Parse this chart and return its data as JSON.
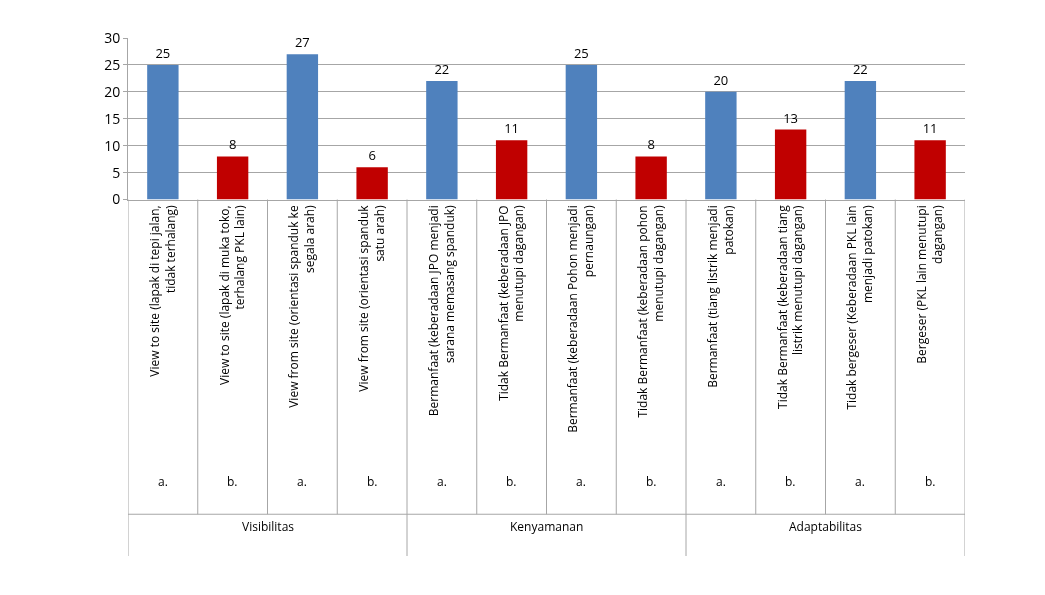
{
  "chart_data": {
    "type": "bar",
    "categories": [
      "View to site (lapak di tepi jalan, tidak terhalang)",
      "View to site (lapak di muka toko, terhalang PKL lain)",
      "View from site (orientasi spanduk ke segala arah)",
      "View from site (orientasi spanduk satu arah)",
      "Bermanfaat (keberadaan JPO menjadi sarana memasang spanduk)",
      "Tidak Bermanfaat (keberadaan JPO menutupi dagangan)",
      "Bermanfaat (keberadaan Pohon menjadi pernaungan)",
      "Tidak Bermanfaat (keberadaan pohon menutupi dagangan)",
      "Bermanfaat (tiang listrik menjadi patokan)",
      "Tidak Bermanfaat (keberadaan tiang listrik menutupi dagangan)",
      "Tidak bergeser (Keberadaan PKL lain menjadi patokan)",
      "Bergeser (PKL lain menutupi dagangan)"
    ],
    "values": [
      25,
      8,
      27,
      6,
      22,
      11,
      25,
      8,
      20,
      13,
      22,
      11
    ],
    "colors": [
      "#4f81bd",
      "#c00000",
      "#4f81bd",
      "#c00000",
      "#4f81bd",
      "#c00000",
      "#4f81bd",
      "#c00000",
      "#4f81bd",
      "#c00000",
      "#4f81bd",
      "#c00000"
    ],
    "data_labels": true,
    "ylim": [
      0,
      30
    ],
    "yticks": [
      0,
      5,
      10,
      15,
      20,
      25,
      30
    ],
    "grid": "y",
    "annotations": [
      "a.",
      "b.",
      "a.",
      "b.",
      "a.",
      "b.",
      "a.",
      "b.",
      "a.",
      "b.",
      "a.",
      "b.",
      "Visibilitas",
      "Kenyamanan",
      "Adaptabilitas"
    ]
  }
}
